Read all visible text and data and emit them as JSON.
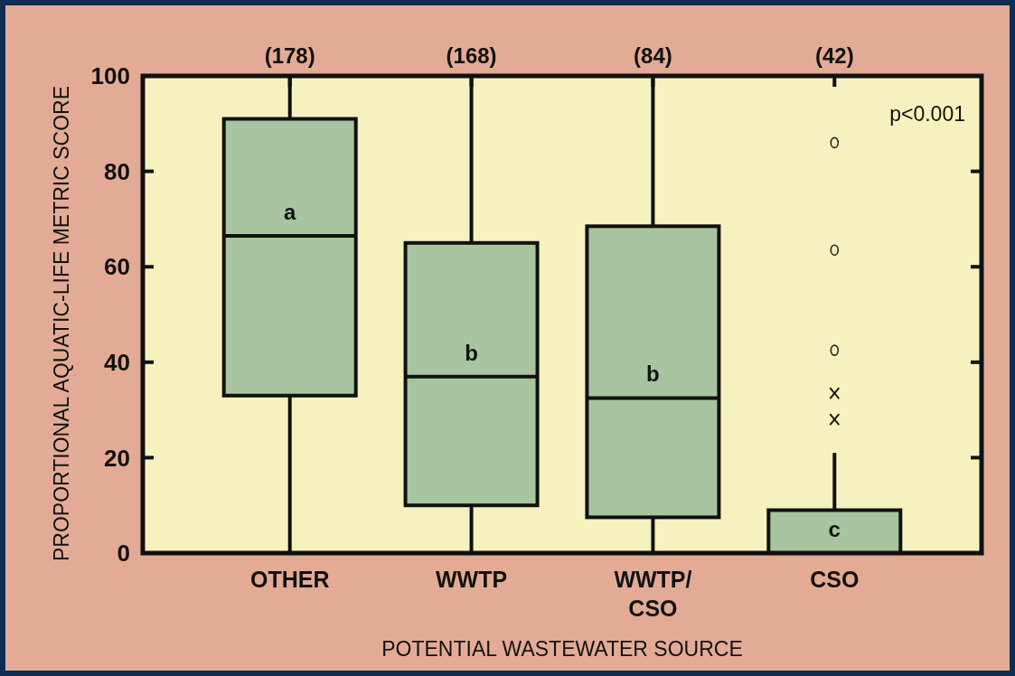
{
  "chart_data": {
    "type": "box",
    "xlabel": "POTENTIAL WASTEWATER SOURCE",
    "ylabel": "PROPORTIONAL AQUATIC-LIFE METRIC SCORE",
    "categories": [
      "OTHER",
      "WWTP",
      "WWTP/CSO",
      "CSO"
    ],
    "ylim": [
      0,
      100
    ],
    "yticks": [
      0,
      20,
      40,
      60,
      80,
      100
    ],
    "grid": false,
    "series": [
      {
        "color": "#a9c4a0",
        "boxes": [
          {
            "low": 0,
            "q1": 33,
            "median": 66.5,
            "q3": 91,
            "high": 100
          },
          {
            "low": 0,
            "q1": 10,
            "median": 37,
            "q3": 65,
            "high": 100
          },
          {
            "low": 0,
            "q1": 7.5,
            "median": 32.5,
            "q3": 68.5,
            "high": 100
          },
          {
            "low": 0,
            "q1": 0,
            "median": 0,
            "q3": 9,
            "high": 21,
            "outliers": [
              86,
              63.5,
              42.5
            ]
          }
        ]
      },
      {
        "type": "scatter",
        "marker": "cross",
        "color": "#1a1a1a",
        "x": [
          "CSO",
          "CSO"
        ],
        "values": [
          33.5,
          28
        ]
      }
    ],
    "annotations": [
      "(178)",
      "(168)",
      "(84)",
      "(42)",
      "a",
      "b",
      "b",
      "c",
      "p<0.001"
    ]
  }
}
